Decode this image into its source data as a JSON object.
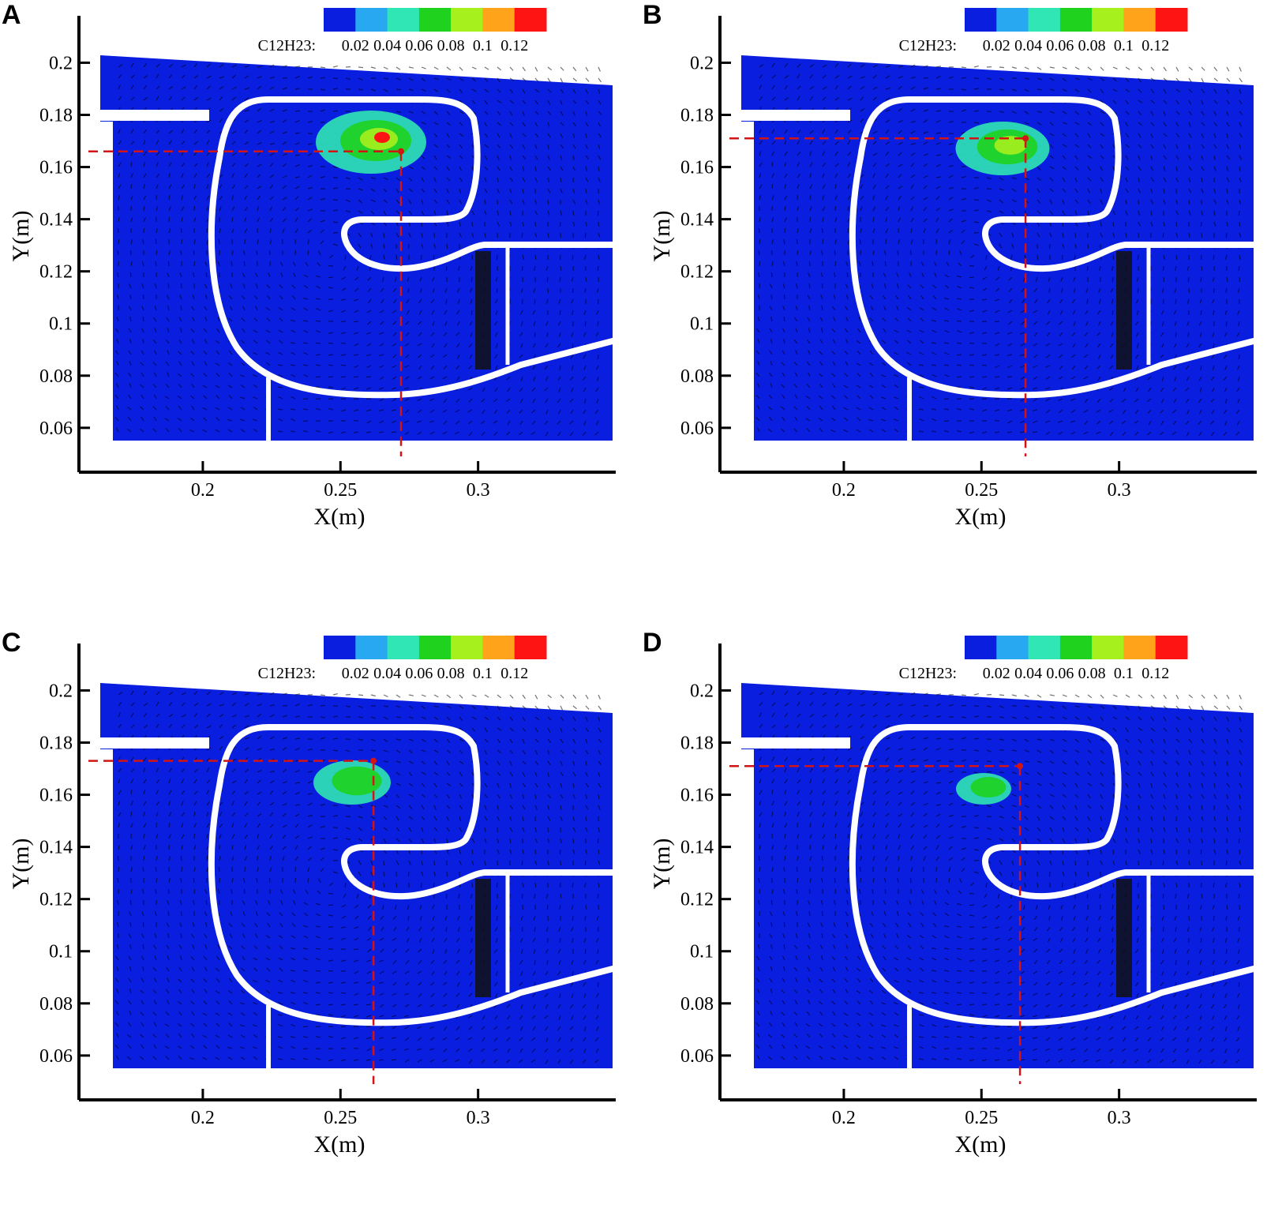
{
  "figure": {
    "colorbar": {
      "variable_label": "C12H23:",
      "tick_labels": [
        "0.02",
        "0.04",
        "0.06",
        "0.08",
        "0.1",
        "0.12"
      ],
      "colors": [
        "#0a1ee0",
        "#27a8f0",
        "#2fe6b4",
        "#1ed21e",
        "#a6f01e",
        "#ffa31a",
        "#ff1414"
      ]
    },
    "axes": {
      "xlabel": "X(m)",
      "ylabel": "Y(m)",
      "x_ticks": [
        "0.2",
        "0.25",
        "0.3"
      ],
      "y_ticks": [
        "0.06",
        "0.08",
        "0.1",
        "0.12",
        "0.14",
        "0.16",
        "0.18",
        "0.2"
      ],
      "x_tick_values": [
        0.2,
        0.25,
        0.3
      ],
      "y_tick_values": [
        0.06,
        0.08,
        0.1,
        0.12,
        0.14,
        0.16,
        0.18,
        0.2
      ],
      "xlim": [
        0.155,
        0.35
      ],
      "ylim": [
        0.043,
        0.218
      ]
    },
    "field_color": "#0a1ee0",
    "wall_color": "#ffffff",
    "marker_color": "#d21414"
  },
  "panels": [
    {
      "letter": "A",
      "marker": {
        "x": 0.272,
        "y": 0.166
      }
    },
    {
      "letter": "B",
      "marker": {
        "x": 0.266,
        "y": 0.171
      }
    },
    {
      "letter": "C",
      "marker": {
        "x": 0.262,
        "y": 0.173
      }
    },
    {
      "letter": "D",
      "marker": {
        "x": 0.264,
        "y": 0.171
      }
    }
  ]
}
